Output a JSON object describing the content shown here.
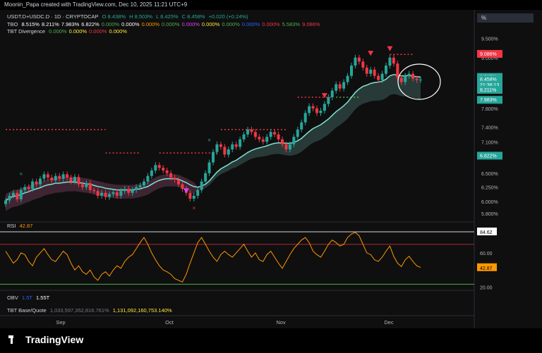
{
  "header": {
    "created_line": "Moonin_Papa created with TradingView.com, Dec 10, 2025 11:21 UTC+9"
  },
  "legend": {
    "symbol_row": {
      "symbol": "USDT.D+USDC.D · 1D · CRYPTOCAP",
      "o": "O 8.438%",
      "h": "H 8.503%",
      "l": "L 8.425%",
      "c": "C 8.458%",
      "chg": "+0.020 (+0.24%)"
    },
    "tbo_row": {
      "name": "TBO",
      "values": [
        {
          "text": "8.515%",
          "color": "#ffffff"
        },
        {
          "text": "8.211%",
          "color": "#ffffff"
        },
        {
          "text": "7.983%",
          "color": "#ffffff"
        },
        {
          "text": "6.822%",
          "color": "#ffffff"
        },
        {
          "text": "0.000%",
          "color": "#4caf50"
        },
        {
          "text": "0.000%",
          "color": "#ffffff"
        },
        {
          "text": "0.000%",
          "color": "#ff9800"
        },
        {
          "text": "0.000%",
          "color": "#4caf50"
        },
        {
          "text": "0.000%",
          "color": "#e040fb"
        },
        {
          "text": "0.000%",
          "color": "#ffeb3b"
        },
        {
          "text": "0.000%",
          "color": "#4caf50"
        },
        {
          "text": "0.000%",
          "color": "#2962ff"
        },
        {
          "text": "0.000%",
          "color": "#f23645"
        },
        {
          "text": "5.583%",
          "color": "#4caf50"
        },
        {
          "text": "9.086%",
          "color": "#f23645"
        }
      ]
    },
    "div_row": {
      "name": "TBT Divergence",
      "values": [
        {
          "text": "0.000%",
          "color": "#4caf50"
        },
        {
          "text": "0.000%",
          "color": "#ffeb3b"
        },
        {
          "text": "0.000%",
          "color": "#f23645"
        },
        {
          "text": "0.000%",
          "color": "#ffeb3b"
        }
      ]
    },
    "rsi_name": "RSI",
    "rsi_value": "42.87",
    "obv_name": "OBV",
    "obv_value1": "1.5T",
    "obv_value2": "1.55T",
    "base_quote_name": "TBT Base/Quote",
    "base_quote_v1": "1,033,597,352,816.761%",
    "base_quote_v2": "1,131,092,160,753.140%"
  },
  "toolbar": {
    "percent_label": "%"
  },
  "footer": {
    "logo_text": "TradingView"
  },
  "colors": {
    "up": "#26a69a",
    "down": "#f23645",
    "ema": "#7fe3d2",
    "rsi": "#ff9800"
  },
  "chart_data": [
    {
      "type": "candlestick",
      "yscale": "log",
      "ylim": [
        5.7,
        9.7
      ],
      "xticks": [
        "Sep",
        "Oct",
        "Nov",
        "Dec"
      ],
      "yticks": [
        "9.500%",
        "9.000%",
        "8.500%",
        "8.000%",
        "7.800%",
        "7.400%",
        "7.100%",
        "6.800%",
        "6.500%",
        "6.250%",
        "6.000%",
        "5.800%"
      ],
      "ytick_values": [
        9.5,
        9.0,
        8.5,
        8.0,
        7.8,
        7.4,
        7.1,
        6.8,
        6.5,
        6.25,
        6.0,
        5.8
      ],
      "price_labels": [
        {
          "text": "9.086%",
          "value": 9.086,
          "color": "#f23645"
        },
        {
          "text": "8.515%",
          "value": 8.515,
          "color": "#26a69a"
        },
        {
          "text": "8.458%",
          "value": 8.458,
          "color": "#26a69a"
        },
        {
          "text": "21:38:13",
          "value": 8.33,
          "color": "#26a69a"
        },
        {
          "text": "8.211%",
          "value": 8.211,
          "color": "#26a69a"
        },
        {
          "text": "7.983%",
          "value": 7.983,
          "color": "#26a69a"
        },
        {
          "text": "6.822%",
          "value": 6.822,
          "color": "#26a69a"
        }
      ],
      "closes": [
        6.02,
        6.1,
        6.15,
        6.04,
        6.2,
        6.25,
        6.22,
        6.35,
        6.3,
        6.4,
        6.48,
        6.42,
        6.37,
        6.45,
        6.4,
        6.48,
        6.42,
        6.35,
        6.43,
        6.3,
        6.25,
        6.32,
        6.2,
        6.18,
        6.1,
        6.15,
        6.08,
        6.13,
        6.16,
        6.1,
        6.18,
        6.22,
        6.15,
        6.2,
        6.25,
        6.28,
        6.35,
        6.45,
        6.55,
        6.65,
        6.6,
        6.55,
        6.5,
        6.42,
        6.38,
        6.3,
        6.22,
        6.15,
        6.05,
        6.1,
        6.2,
        6.35,
        6.5,
        6.7,
        6.9,
        7.05,
        7.0,
        6.85,
        6.95,
        7.05,
        7.0,
        7.15,
        7.25,
        7.35,
        7.3,
        7.2,
        7.15,
        7.1,
        7.2,
        7.3,
        7.25,
        7.15,
        7.05,
        6.95,
        7.05,
        7.2,
        7.35,
        7.5,
        7.7,
        7.85,
        7.8,
        7.7,
        7.75,
        7.9,
        8.05,
        8.2,
        8.35,
        8.25,
        8.4,
        8.55,
        8.8,
        9.0,
        8.9,
        8.75,
        8.6,
        8.7,
        8.55,
        8.45,
        8.6,
        8.8,
        9.0,
        8.85,
        8.5,
        8.4,
        8.55,
        8.6,
        8.48,
        8.45,
        8.46
      ],
      "ema": [
        6.02,
        6.06,
        6.09,
        6.1,
        6.12,
        6.15,
        6.17,
        6.2,
        6.22,
        6.24,
        6.27,
        6.29,
        6.3,
        6.32,
        6.32,
        6.33,
        6.34,
        6.34,
        6.34,
        6.33,
        6.32,
        6.31,
        6.3,
        6.28,
        6.26,
        6.25,
        6.23,
        6.22,
        6.21,
        6.2,
        6.2,
        6.2,
        6.2,
        6.2,
        6.21,
        6.22,
        6.24,
        6.26,
        6.3,
        6.34,
        6.37,
        6.39,
        6.4,
        6.4,
        6.4,
        6.39,
        6.36,
        6.33,
        6.29,
        6.26,
        6.25,
        6.27,
        6.3,
        6.36,
        6.44,
        6.52,
        6.58,
        6.62,
        6.66,
        6.71,
        6.74,
        6.79,
        6.84,
        6.89,
        6.93,
        6.96,
        6.98,
        7.0,
        7.02,
        7.05,
        7.07,
        7.08,
        7.08,
        7.07,
        7.07,
        7.09,
        7.12,
        7.17,
        7.24,
        7.31,
        7.37,
        7.41,
        7.45,
        7.51,
        7.57,
        7.65,
        7.73,
        7.79,
        7.86,
        7.94,
        8.05,
        8.16,
        8.24,
        8.3,
        8.33,
        8.37,
        8.39,
        8.4,
        8.42,
        8.47,
        8.55,
        8.58,
        8.57,
        8.55,
        8.55,
        8.56,
        8.54,
        8.53,
        8.52
      ],
      "resistance_lines": [
        {
          "from": 0,
          "to": 26,
          "value": 7.35,
          "color": "#f23645"
        },
        {
          "from": 26,
          "to": 35,
          "value": 6.88,
          "color": "#f23645"
        },
        {
          "from": 40,
          "to": 55,
          "value": 6.88,
          "color": "#f23645"
        },
        {
          "from": 56,
          "to": 73,
          "value": 7.35,
          "color": "#f23645"
        },
        {
          "from": 76,
          "to": 85,
          "value": 8.05,
          "color": "#f23645"
        },
        {
          "from": 86,
          "to": 92,
          "value": 8.05,
          "color": "#4caf50"
        },
        {
          "from": 100,
          "to": 106,
          "value": 9.08,
          "color": "#f23645"
        }
      ],
      "markers": [
        {
          "i": 4,
          "value": 6.45,
          "shape": "x",
          "color": "#26a69a"
        },
        {
          "i": 47,
          "value": 6.18,
          "shape": "triangle-down",
          "color": "#e040fb"
        },
        {
          "i": 53,
          "value": 7.1,
          "shape": "x",
          "color": "#26a69a"
        },
        {
          "i": 49,
          "value": 5.86,
          "shape": "x",
          "color": "#f23645"
        },
        {
          "i": 83,
          "value": 8.08,
          "shape": "triangle-down",
          "color": "#f23645"
        },
        {
          "i": 95,
          "value": 9.1,
          "shape": "triangle-down",
          "color": "#f23645"
        },
        {
          "i": 100,
          "value": 9.22,
          "shape": "triangle-down",
          "color": "#f23645"
        }
      ]
    },
    {
      "type": "line",
      "name": "RSI",
      "ylim": [
        18,
        92
      ],
      "yticks": [
        "84.62",
        "60.00",
        "42.87",
        "20.00"
      ],
      "ytick_values": [
        84.62,
        60,
        42.87,
        20
      ],
      "bands": [
        70,
        30
      ],
      "values": [
        62,
        55,
        48,
        52,
        60,
        58,
        50,
        45,
        55,
        60,
        65,
        58,
        52,
        50,
        56,
        62,
        58,
        48,
        40,
        45,
        38,
        35,
        40,
        32,
        28,
        35,
        38,
        33,
        40,
        45,
        42,
        50,
        55,
        58,
        65,
        72,
        78,
        70,
        60,
        52,
        45,
        40,
        38,
        35,
        30,
        28,
        26,
        35,
        48,
        60,
        72,
        78,
        70,
        62,
        55,
        50,
        58,
        62,
        58,
        55,
        60,
        65,
        70,
        62,
        55,
        60,
        52,
        50,
        58,
        62,
        55,
        48,
        42,
        50,
        58,
        65,
        70,
        75,
        78,
        72,
        62,
        58,
        55,
        62,
        70,
        75,
        72,
        68,
        70,
        78,
        82,
        84,
        80,
        70,
        60,
        58,
        52,
        50,
        55,
        62,
        68,
        56,
        48,
        44,
        52,
        56,
        50,
        45,
        43
      ]
    }
  ]
}
